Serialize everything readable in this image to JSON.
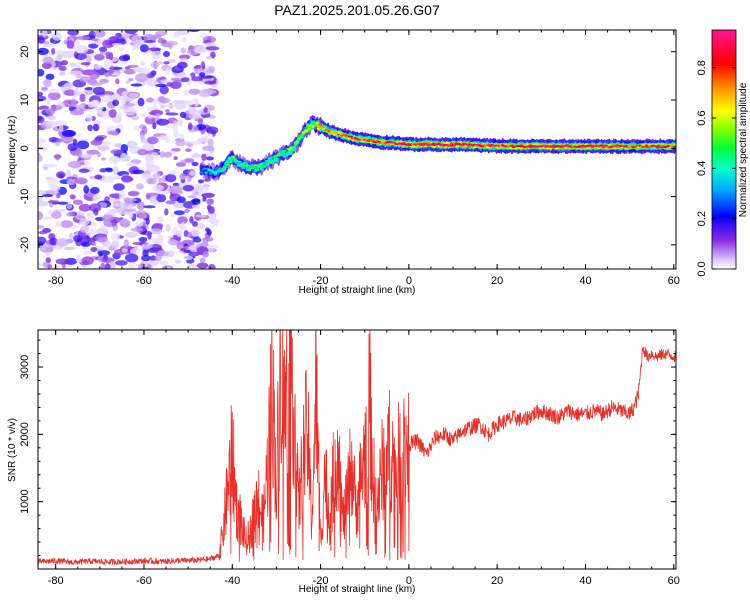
{
  "figure": {
    "title": "PAZ1.2025.201.05.26.G07"
  },
  "colors": {
    "snr_line": "#e8302a",
    "axis": "#000000",
    "background": "#ffffff"
  },
  "chart_data": [
    {
      "type": "heatmap",
      "xlabel": "Height of straight line (km)",
      "ylabel": "Frequency (Hz)",
      "xlim": [
        -84,
        60.5
      ],
      "ylim": [
        -25,
        24.5
      ],
      "xticks": [
        "-80",
        "-60",
        "-40",
        "-20",
        "0",
        "20",
        "40",
        "60"
      ],
      "xtick_values": [
        -80,
        -60,
        -40,
        -20,
        0,
        20,
        40,
        60
      ],
      "yticks": [
        "-20",
        "-10",
        "0",
        "10",
        "20"
      ],
      "ytick_values": [
        -20,
        -10,
        0,
        10,
        20
      ],
      "colorbar": {
        "label": "Normalized spectral amplitude",
        "range": [
          0,
          0.95
        ],
        "ticks": [
          "0.0",
          "0.2",
          "0.4",
          "0.6",
          "0.8"
        ],
        "tick_values": [
          0,
          0.2,
          0.4,
          0.6,
          0.8
        ],
        "colormap": "rainbow (white-purple-blue-cyan-green-yellow-red-magenta)"
      },
      "noise_region": {
        "x_range": [
          -84,
          -44
        ],
        "freq_range": [
          -25,
          24.5
        ],
        "amplitude_range": [
          0.0,
          0.12
        ]
      },
      "ridge": {
        "x": [
          -47,
          -44,
          -42,
          -40,
          -38,
          -36,
          -34,
          -32,
          -30,
          -28,
          -26,
          -24,
          -22,
          -20,
          -18,
          -16,
          -14,
          -12,
          -10,
          -8,
          -6,
          -4,
          -2,
          0,
          4,
          8,
          12,
          16,
          20,
          24,
          28,
          32,
          36,
          40,
          44,
          48,
          52,
          56,
          60.5
        ],
        "freq": [
          -4.5,
          -5,
          -4,
          -2,
          -3.5,
          -4,
          -4,
          -3,
          -2,
          -1,
          0,
          3,
          5,
          4.5,
          3.5,
          3,
          2.5,
          2,
          1.8,
          1.5,
          1.2,
          1.2,
          1.0,
          0.8,
          0.8,
          0.7,
          0.8,
          0.6,
          0.5,
          0.4,
          0.4,
          0.4,
          0.4,
          0.4,
          0.4,
          0.4,
          0.4,
          0.4,
          0.4
        ],
        "amplitude": [
          0.3,
          0.4,
          0.45,
          0.5,
          0.45,
          0.5,
          0.5,
          0.45,
          0.5,
          0.5,
          0.55,
          0.6,
          0.65,
          0.7,
          0.75,
          0.75,
          0.8,
          0.85,
          0.8,
          0.85,
          0.8,
          0.85,
          0.8,
          0.85,
          0.9,
          0.9,
          0.9,
          0.85,
          0.8,
          0.85,
          0.9,
          0.9,
          0.85,
          0.8,
          0.85,
          0.8,
          0.75,
          0.8,
          0.8
        ]
      }
    },
    {
      "type": "line",
      "xlabel": "Height of straight line (km)",
      "ylabel": "SNR (10 * v/v)",
      "xlim": [
        -84,
        60.5
      ],
      "ylim": [
        0,
        3550
      ],
      "xticks": [
        "-80",
        "-60",
        "-40",
        "-20",
        "0",
        "20",
        "40",
        "60"
      ],
      "xtick_values": [
        -80,
        -60,
        -40,
        -20,
        0,
        20,
        40,
        60
      ],
      "yticks": [
        "1000",
        "2000",
        "3000"
      ],
      "ytick_values": [
        1000,
        2000,
        3000
      ],
      "series": [
        {
          "x": [
            -84,
            -80,
            -76,
            -72,
            -68,
            -64,
            -60,
            -56,
            -52,
            -48,
            -45,
            -43,
            -42,
            -41,
            -40,
            -39,
            -38,
            -37,
            -36,
            -35,
            -34,
            -33,
            -32,
            -31,
            -30,
            -29,
            -28,
            -27,
            -26,
            -25,
            -24,
            -23,
            -22,
            -21,
            -20,
            -19,
            -18,
            -17,
            -16,
            -15,
            -14,
            -13,
            -12,
            -11,
            -10,
            -9,
            -8,
            -7,
            -6,
            -5,
            -4,
            -3,
            -2,
            -1,
            0,
            2,
            4,
            6,
            8,
            10,
            12,
            14,
            16,
            18,
            20,
            22,
            24,
            26,
            28,
            30,
            32,
            34,
            36,
            38,
            40,
            42,
            44,
            46,
            48,
            50,
            51,
            52,
            53,
            54,
            55,
            56,
            58,
            60.5
          ],
          "y": [
            110,
            120,
            100,
            115,
            105,
            110,
            120,
            110,
            125,
            130,
            150,
            200,
            600,
            1200,
            1700,
            900,
            700,
            400,
            500,
            900,
            1000,
            700,
            1500,
            2900,
            1200,
            3300,
            2200,
            3350,
            2500,
            900,
            1600,
            2100,
            700,
            2700,
            400,
            1500,
            700,
            1400,
            1900,
            700,
            1000,
            1600,
            900,
            1300,
            1700,
            2600,
            1300,
            1000,
            1500,
            1700,
            1800,
            1400,
            1700,
            1800,
            1850,
            1900,
            1700,
            1950,
            2000,
            1900,
            2050,
            2100,
            2150,
            2000,
            2150,
            2200,
            2250,
            2200,
            2300,
            2350,
            2300,
            2250,
            2350,
            2300,
            2300,
            2350,
            2300,
            2400,
            2350,
            2300,
            2400,
            2600,
            3300,
            3150,
            3200,
            3150,
            3200,
            3150
          ]
        }
      ]
    }
  ]
}
